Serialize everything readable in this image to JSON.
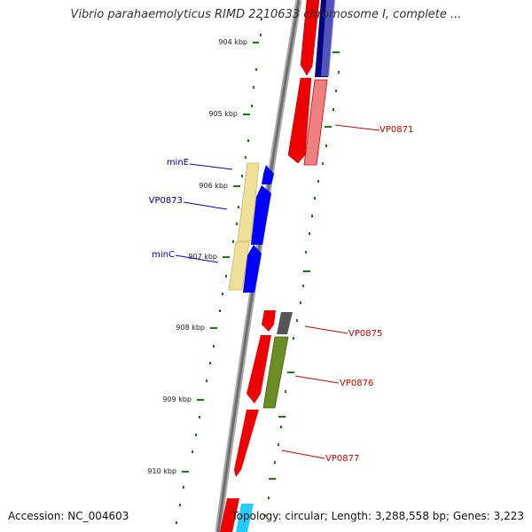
{
  "title": "Vibrio parahaemolyticus RIMD 2210633 chromosome I, complete ...",
  "accession": "Accession: NC_004603",
  "topology": "Topology: circular; Length: 3,288,558 bp; Genes: 3,223",
  "colors": {
    "forward_label": "#cc0000",
    "reverse_label": "#000099",
    "tick": "#1a7a1a",
    "backbone": "#888888"
  },
  "ticks": [
    "904 kbp",
    "905 kbp",
    "906 kbp",
    "907 kbp",
    "908 kbp",
    "909 kbp",
    "910 kbp"
  ],
  "gene_labels": [
    "VP0871",
    "minE",
    "VP0873",
    "minC",
    "VP0875",
    "VP0876",
    "VP0877"
  ]
}
